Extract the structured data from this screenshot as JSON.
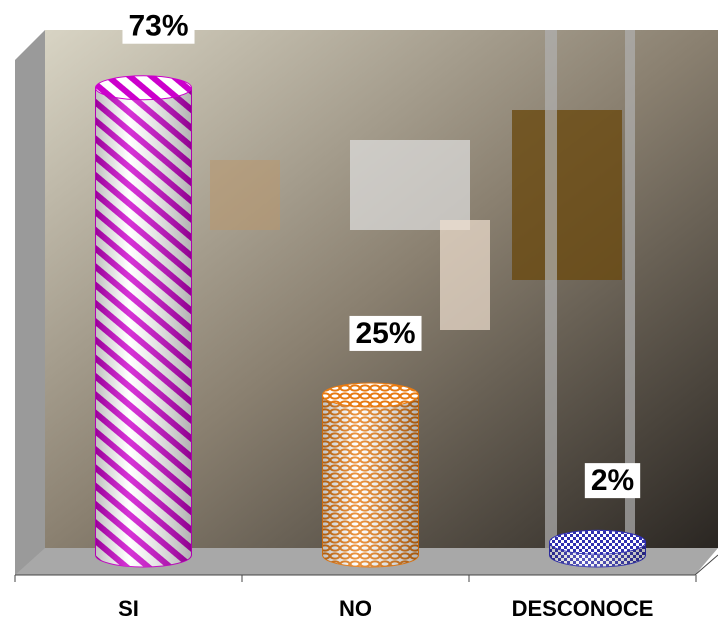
{
  "chart_data": {
    "type": "cylinder",
    "categories": [
      "SI",
      "NO",
      "DESCONOCE"
    ],
    "values": [
      73,
      25,
      2
    ],
    "value_labels": [
      "73%",
      "25%",
      "2%"
    ],
    "colors": [
      "#cc00cc",
      "#e87a10",
      "#3030b0"
    ]
  }
}
